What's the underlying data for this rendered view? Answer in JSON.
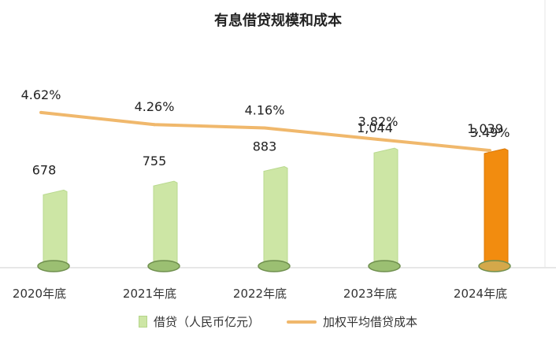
{
  "chart_data": {
    "type": "bar+line",
    "title": "有息借贷规模和成本",
    "categories": [
      "2020年底",
      "2021年底",
      "2022年底",
      "2023年底",
      "2024年底"
    ],
    "series": [
      {
        "name": "借贷（人民币亿元）",
        "kind": "bar",
        "values": [
          678,
          755,
          883,
          1044,
          1039
        ],
        "value_labels": [
          "678",
          "755",
          "883",
          "1,044",
          "1,039"
        ],
        "color": "#cde6a5",
        "highlight_color": "#f28c0f",
        "highlight_index": 4
      },
      {
        "name": "加权平均借贷成本",
        "kind": "line",
        "values": [
          4.62,
          4.26,
          4.16,
          3.82,
          3.49
        ],
        "value_labels": [
          "4.62%",
          "4.26%",
          "4.16%",
          "3.82%",
          "3.49%"
        ],
        "color": "#f0b86c"
      }
    ],
    "bar_ylim": [
      0,
      2200
    ],
    "line_ylim": [
      0,
      7.5
    ]
  }
}
